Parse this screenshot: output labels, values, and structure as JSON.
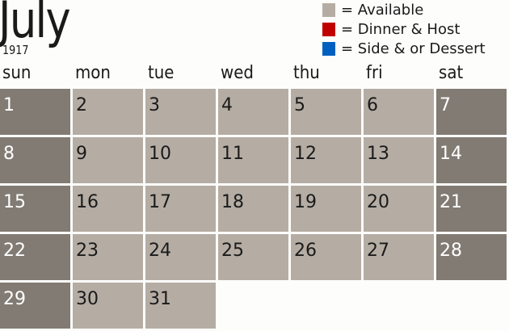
{
  "header": {
    "month": "July",
    "year": "1917"
  },
  "legend": [
    {
      "label": "= Available",
      "color": "#b5ada4"
    },
    {
      "label": "= Dinner & Host",
      "color": "#c00000"
    },
    {
      "label": "= Side & or Dessert",
      "color": "#0060c0"
    }
  ],
  "weekdays": [
    "sun",
    "mon",
    "tue",
    "wed",
    "thu",
    "fri",
    "sat"
  ],
  "colors": {
    "weekday": "#b5ada4",
    "weekend": "#827b73"
  },
  "days": [
    "1",
    "2",
    "3",
    "4",
    "5",
    "6",
    "7",
    "8",
    "9",
    "10",
    "11",
    "12",
    "13",
    "14",
    "15",
    "16",
    "17",
    "18",
    "19",
    "20",
    "21",
    "22",
    "23",
    "24",
    "25",
    "26",
    "27",
    "28",
    "29",
    "30",
    "31"
  ]
}
